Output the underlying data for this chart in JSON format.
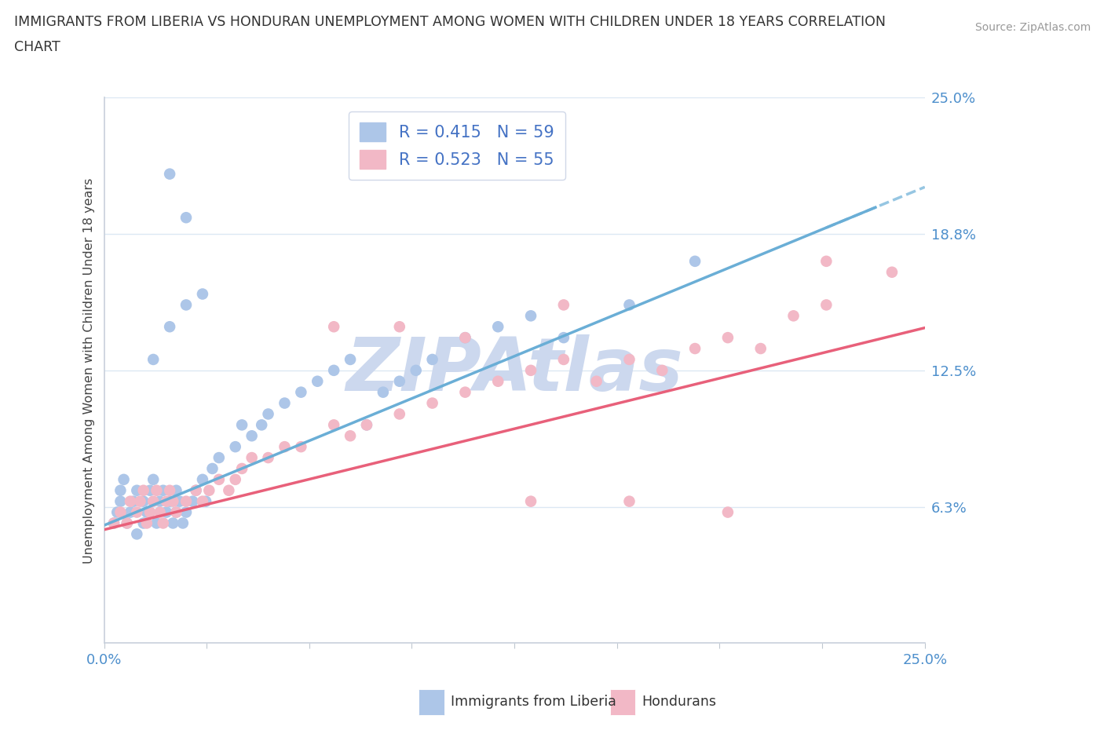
{
  "title_line1": "IMMIGRANTS FROM LIBERIA VS HONDURAN UNEMPLOYMENT AMONG WOMEN WITH CHILDREN UNDER 18 YEARS CORRELATION",
  "title_line2": "CHART",
  "source_text": "Source: ZipAtlas.com",
  "ylabel": "Unemployment Among Women with Children Under 18 years",
  "xlim": [
    0.0,
    0.25
  ],
  "ylim": [
    0.0,
    0.25
  ],
  "ytick_vals": [
    0.0,
    0.0625,
    0.125,
    0.1875,
    0.25
  ],
  "ytick_labels": [
    "",
    "6.3%",
    "12.5%",
    "18.8%",
    "25.0%"
  ],
  "xtick_vals": [
    0.0,
    0.03125,
    0.0625,
    0.09375,
    0.125,
    0.15625,
    0.1875,
    0.21875,
    0.25
  ],
  "xtick_labels": [
    "0.0%",
    "",
    "",
    "",
    "",
    "",
    "",
    "",
    "25.0%"
  ],
  "legend_label_liberia": "R = 0.415   N = 59",
  "legend_label_honduran": "R = 0.523   N = 55",
  "liberia_color": "#adc6e8",
  "honduran_color": "#f2b8c6",
  "liberia_line_color": "#6aaed6",
  "honduran_line_color": "#e8607a",
  "legend_text_color": "#4472c4",
  "watermark": "ZIPAtlas",
  "watermark_color": "#ccd8ee",
  "background_color": "#ffffff",
  "grid_color": "#dce8f4",
  "tick_label_color": "#4d8fcc",
  "bottom_legend_liberia": "Immigrants from Liberia",
  "bottom_legend_honduran": "Hondurans",
  "liberia_x": [
    0.003,
    0.004,
    0.005,
    0.005,
    0.006,
    0.007,
    0.008,
    0.009,
    0.01,
    0.01,
    0.012,
    0.012,
    0.013,
    0.014,
    0.015,
    0.016,
    0.017,
    0.018,
    0.019,
    0.02,
    0.021,
    0.022,
    0.022,
    0.023,
    0.024,
    0.025,
    0.027,
    0.028,
    0.03,
    0.031,
    0.033,
    0.035,
    0.04,
    0.042,
    0.045,
    0.048,
    0.05,
    0.055,
    0.06,
    0.065,
    0.07,
    0.075,
    0.08,
    0.085,
    0.09,
    0.095,
    0.1,
    0.11,
    0.12,
    0.13,
    0.14,
    0.015,
    0.02,
    0.025,
    0.03,
    0.16,
    0.02,
    0.025,
    0.18
  ],
  "liberia_y": [
    0.055,
    0.06,
    0.065,
    0.07,
    0.075,
    0.055,
    0.06,
    0.065,
    0.07,
    0.05,
    0.055,
    0.065,
    0.06,
    0.07,
    0.075,
    0.055,
    0.065,
    0.07,
    0.06,
    0.065,
    0.055,
    0.07,
    0.06,
    0.065,
    0.055,
    0.06,
    0.065,
    0.07,
    0.075,
    0.065,
    0.08,
    0.085,
    0.09,
    0.1,
    0.095,
    0.1,
    0.105,
    0.11,
    0.115,
    0.12,
    0.125,
    0.13,
    0.1,
    0.115,
    0.12,
    0.125,
    0.13,
    0.14,
    0.145,
    0.15,
    0.14,
    0.13,
    0.145,
    0.155,
    0.16,
    0.155,
    0.215,
    0.195,
    0.175
  ],
  "honduran_x": [
    0.003,
    0.005,
    0.007,
    0.008,
    0.01,
    0.011,
    0.012,
    0.013,
    0.014,
    0.015,
    0.016,
    0.017,
    0.018,
    0.019,
    0.02,
    0.021,
    0.022,
    0.025,
    0.028,
    0.03,
    0.032,
    0.035,
    0.038,
    0.04,
    0.042,
    0.045,
    0.05,
    0.055,
    0.06,
    0.07,
    0.075,
    0.08,
    0.09,
    0.1,
    0.11,
    0.12,
    0.13,
    0.14,
    0.15,
    0.16,
    0.17,
    0.18,
    0.19,
    0.2,
    0.21,
    0.22,
    0.14,
    0.07,
    0.09,
    0.11,
    0.24,
    0.13,
    0.16,
    0.19,
    0.22
  ],
  "honduran_y": [
    0.055,
    0.06,
    0.055,
    0.065,
    0.06,
    0.065,
    0.07,
    0.055,
    0.06,
    0.065,
    0.07,
    0.06,
    0.055,
    0.065,
    0.07,
    0.065,
    0.06,
    0.065,
    0.07,
    0.065,
    0.07,
    0.075,
    0.07,
    0.075,
    0.08,
    0.085,
    0.085,
    0.09,
    0.09,
    0.1,
    0.095,
    0.1,
    0.105,
    0.11,
    0.115,
    0.12,
    0.125,
    0.13,
    0.12,
    0.13,
    0.125,
    0.135,
    0.14,
    0.135,
    0.15,
    0.155,
    0.155,
    0.145,
    0.145,
    0.14,
    0.17,
    0.065,
    0.065,
    0.06,
    0.175
  ]
}
